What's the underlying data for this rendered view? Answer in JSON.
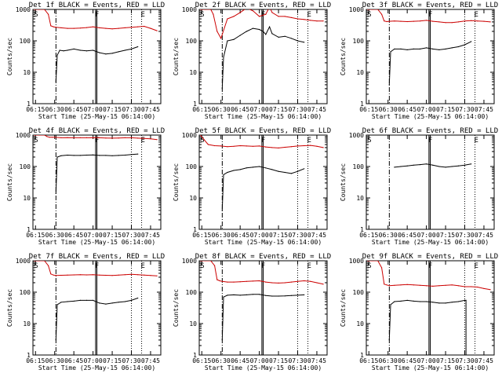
{
  "figure": {
    "title": "",
    "series_colors": {
      "events": "#000000",
      "lld": "#cc0000"
    }
  },
  "chart_data": [
    {
      "type": "line",
      "title": "Det 1f BLACK = Events, RED = LLD",
      "xlabel": "Start Time (25-May-15 06:14:00)",
      "ylabel": "Counts/sec",
      "xticks": [
        "06:15",
        "06:30",
        "06:45",
        "07:00",
        "07:15",
        "07:30",
        "07:45"
      ],
      "yticks": [
        "1",
        "10",
        "100",
        "1000"
      ],
      "ylim": [
        1,
        1000
      ],
      "yscale": "log",
      "markers": [
        "S",
        "F",
        "E"
      ],
      "series": [
        {
          "name": "LLD",
          "color": "#cc0000",
          "x": [
            "06:14",
            "06:18",
            "06:22",
            "06:25",
            "06:27",
            "06:29",
            "06:31",
            "06:35",
            "06:40",
            "06:45",
            "06:50",
            "06:55",
            "07:00",
            "07:05",
            "07:10",
            "07:15",
            "07:20",
            "07:25",
            "07:30",
            "07:35",
            "07:40",
            "07:45",
            "07:50"
          ],
          "y": [
            1000,
            1000,
            1000,
            700,
            300,
            280,
            270,
            260,
            250,
            250,
            255,
            265,
            280,
            260,
            250,
            240,
            250,
            260,
            270,
            280,
            290,
            250,
            210
          ]
        },
        {
          "name": "Events",
          "color": "#000000",
          "x": [
            "06:31",
            "06:32",
            "06:34",
            "06:37",
            "06:40",
            "06:45",
            "06:50",
            "06:55",
            "07:00",
            "07:05",
            "07:10",
            "07:15",
            "07:20",
            "07:25",
            "07:30",
            "07:35"
          ],
          "y": [
            5,
            35,
            50,
            48,
            50,
            55,
            50,
            48,
            50,
            42,
            38,
            40,
            45,
            50,
            55,
            65
          ]
        }
      ]
    },
    {
      "type": "line",
      "title": "Det 2f BLACK = Events, RED = LLD",
      "xlabel": "Start Time (25-May-15 06:14:00)",
      "ylabel": "Counts/sec",
      "xticks": [
        "06:15",
        "06:30",
        "06:45",
        "07:00",
        "07:15",
        "07:30",
        "07:45"
      ],
      "yticks": [
        "1",
        "10",
        "100",
        "1000"
      ],
      "ylim": [
        1,
        1000
      ],
      "yscale": "log",
      "markers": [
        "S",
        "F",
        "E"
      ],
      "series": [
        {
          "name": "LLD",
          "color": "#cc0000",
          "x": [
            "06:14",
            "06:18",
            "06:22",
            "06:24",
            "06:27",
            "06:30",
            "06:35",
            "06:40",
            "06:45",
            "06:50",
            "06:55",
            "07:00",
            "07:05",
            "07:08",
            "07:10",
            "07:15",
            "07:20",
            "07:25",
            "07:30",
            "07:35",
            "07:40",
            "07:45",
            "07:50"
          ],
          "y": [
            1000,
            1000,
            1000,
            700,
            200,
            120,
            500,
            600,
            800,
            1100,
            900,
            600,
            700,
            1200,
            800,
            600,
            600,
            550,
            500,
            480,
            450,
            430,
            430
          ]
        },
        {
          "name": "Events",
          "color": "#000000",
          "x": [
            "06:31",
            "06:32",
            "06:35",
            "06:40",
            "06:45",
            "06:50",
            "06:55",
            "07:00",
            "07:03",
            "07:05",
            "07:08",
            "07:10",
            "07:15",
            "07:20",
            "07:25",
            "07:30",
            "07:35"
          ],
          "y": [
            3,
            30,
            100,
            110,
            150,
            200,
            250,
            230,
            200,
            160,
            280,
            170,
            130,
            140,
            120,
            100,
            90
          ]
        }
      ]
    },
    {
      "type": "line",
      "title": "Det 3f BLACK = Events, RED = LLD",
      "xlabel": "Start Time (25-May-15 06:14:00)",
      "ylabel": "Counts/sec",
      "xticks": [
        "06:15",
        "06:30",
        "06:45",
        "07:00",
        "07:15",
        "07:30",
        "07:45"
      ],
      "yticks": [
        "1",
        "10",
        "100",
        "1000"
      ],
      "ylim": [
        1,
        1000
      ],
      "yscale": "log",
      "markers": [
        "S",
        "F",
        "E"
      ],
      "series": [
        {
          "name": "LLD",
          "color": "#cc0000",
          "x": [
            "06:14",
            "06:18",
            "06:22",
            "06:25",
            "06:27",
            "06:29",
            "06:31",
            "06:35",
            "06:40",
            "06:45",
            "06:50",
            "06:55",
            "07:00",
            "07:05",
            "07:10",
            "07:15",
            "07:20",
            "07:25",
            "07:30",
            "07:35",
            "07:40",
            "07:45",
            "07:50"
          ],
          "y": [
            1000,
            1000,
            1000,
            700,
            430,
            410,
            420,
            430,
            420,
            410,
            420,
            430,
            450,
            420,
            400,
            380,
            380,
            400,
            430,
            440,
            430,
            420,
            400
          ]
        },
        {
          "name": "Events",
          "color": "#000000",
          "x": [
            "06:31",
            "06:32",
            "06:35",
            "06:40",
            "06:45",
            "06:50",
            "06:55",
            "07:00",
            "07:05",
            "07:10",
            "07:15",
            "07:20",
            "07:25",
            "07:30",
            "07:35"
          ],
          "y": [
            4,
            45,
            55,
            55,
            52,
            55,
            55,
            60,
            55,
            52,
            55,
            60,
            65,
            75,
            95
          ]
        }
      ]
    },
    {
      "type": "line",
      "title": "Det 4f BLACK = Events, RED = LLD",
      "xlabel": "Start Time (25-May-15 06:14:00)",
      "ylabel": "Counts/sec",
      "xticks": [
        "06:15",
        "06:30",
        "06:45",
        "07:00",
        "07:15",
        "07:30",
        "07:45"
      ],
      "yticks": [
        "1",
        "10",
        "100",
        "1000"
      ],
      "ylim": [
        1,
        1000
      ],
      "yscale": "log",
      "markers": [
        "S",
        "F",
        "E"
      ],
      "series": [
        {
          "name": "LLD",
          "color": "#cc0000",
          "x": [
            "06:14",
            "06:18",
            "06:22",
            "06:24",
            "06:26",
            "06:28",
            "06:30",
            "06:35",
            "06:40",
            "06:45",
            "06:50",
            "06:55",
            "07:00",
            "07:05",
            "07:10",
            "07:15",
            "07:20",
            "07:25",
            "07:30",
            "07:35",
            "07:40",
            "07:45",
            "07:50"
          ],
          "y": [
            1000,
            1000,
            1000,
            900,
            850,
            850,
            850,
            820,
            830,
            820,
            820,
            820,
            830,
            820,
            810,
            800,
            810,
            820,
            820,
            800,
            780,
            760,
            720
          ]
        },
        {
          "name": "Events",
          "color": "#000000",
          "x": [
            "06:31",
            "06:32",
            "06:35",
            "06:40",
            "06:45",
            "06:50",
            "06:55",
            "07:00",
            "07:05",
            "07:10",
            "07:15",
            "07:20",
            "07:25",
            "07:30",
            "07:35"
          ],
          "y": [
            14,
            200,
            220,
            230,
            225,
            225,
            230,
            235,
            225,
            225,
            220,
            225,
            230,
            240,
            250
          ]
        }
      ]
    },
    {
      "type": "line",
      "title": "Det 5f BLACK = Events, RED = LLD",
      "xlabel": "Start Time (25-May-15 06:14:00)",
      "ylabel": "Counts/sec",
      "xticks": [
        "06:15",
        "06:30",
        "06:45",
        "07:00",
        "07:15",
        "07:30",
        "07:45"
      ],
      "yticks": [
        "1",
        "10",
        "100",
        "1000"
      ],
      "ylim": [
        1,
        1000
      ],
      "yscale": "log",
      "markers": [
        "S",
        "F",
        "E"
      ],
      "series": [
        {
          "name": "LLD",
          "color": "#cc0000",
          "x": [
            "06:14",
            "06:17",
            "06:20",
            "06:25",
            "06:30",
            "06:35",
            "06:40",
            "06:45",
            "06:50",
            "06:55",
            "07:00",
            "07:05",
            "07:10",
            "07:15",
            "07:20",
            "07:25",
            "07:30",
            "07:35",
            "07:40",
            "07:45",
            "07:50"
          ],
          "y": [
            1000,
            700,
            500,
            460,
            450,
            430,
            440,
            460,
            450,
            440,
            450,
            420,
            400,
            390,
            410,
            430,
            450,
            460,
            470,
            440,
            400
          ]
        },
        {
          "name": "Events",
          "color": "#000000",
          "x": [
            "06:31",
            "06:32",
            "06:35",
            "06:40",
            "06:45",
            "06:50",
            "06:55",
            "07:00",
            "07:05",
            "07:10",
            "07:15",
            "07:20",
            "07:25",
            "07:30",
            "07:35"
          ],
          "y": [
            4,
            55,
            65,
            75,
            80,
            90,
            95,
            100,
            90,
            80,
            70,
            65,
            60,
            70,
            85
          ]
        }
      ]
    },
    {
      "type": "line",
      "title": "Det 6f BLACK = Events, RED = LLD",
      "xlabel": "Start Time (25-May-15 06:14:00)",
      "ylabel": "Counts/sec",
      "xticks": [
        "06:15",
        "06:30",
        "06:45",
        "07:00",
        "07:15",
        "07:30",
        "07:45"
      ],
      "yticks": [
        "1",
        "10",
        "100",
        "1000"
      ],
      "ylim": [
        1,
        1000
      ],
      "yscale": "log",
      "markers": [
        "S",
        "F",
        "E"
      ],
      "series": [
        {
          "name": "Events",
          "color": "#000000",
          "x": [
            "06:35",
            "06:40",
            "06:45",
            "06:50",
            "06:55",
            "07:00",
            "07:05",
            "07:10",
            "07:15",
            "07:20",
            "07:25",
            "07:30",
            "07:35"
          ],
          "y": [
            95,
            100,
            105,
            110,
            115,
            120,
            110,
            100,
            95,
            100,
            105,
            110,
            120
          ]
        }
      ]
    },
    {
      "type": "line",
      "title": "Det 7f BLACK = Events, RED = LLD",
      "xlabel": "Start Time (25-May-15 06:14:00)",
      "ylabel": "Counts/sec",
      "xticks": [
        "06:15",
        "06:30",
        "06:45",
        "07:00",
        "07:15",
        "07:30",
        "07:45"
      ],
      "yticks": [
        "1",
        "10",
        "100",
        "1000"
      ],
      "ylim": [
        1,
        1000
      ],
      "yscale": "log",
      "markers": [
        "S",
        "F",
        "E"
      ],
      "series": [
        {
          "name": "LLD",
          "color": "#cc0000",
          "x": [
            "06:14",
            "06:18",
            "06:22",
            "06:25",
            "06:27",
            "06:29",
            "06:31",
            "06:35",
            "06:40",
            "06:45",
            "06:50",
            "06:55",
            "07:00",
            "07:05",
            "07:10",
            "07:15",
            "07:20",
            "07:25",
            "07:30",
            "07:35",
            "07:40",
            "07:45",
            "07:50"
          ],
          "y": [
            1000,
            1000,
            1000,
            700,
            380,
            350,
            340,
            345,
            350,
            355,
            360,
            355,
            360,
            350,
            345,
            340,
            350,
            360,
            370,
            360,
            350,
            340,
            330
          ]
        },
        {
          "name": "Events",
          "color": "#000000",
          "x": [
            "06:31",
            "06:32",
            "06:35",
            "06:40",
            "06:45",
            "06:50",
            "06:55",
            "07:00",
            "07:05",
            "07:10",
            "07:15",
            "07:20",
            "07:25",
            "07:30",
            "07:35"
          ],
          "y": [
            3,
            40,
            48,
            50,
            52,
            55,
            55,
            55,
            45,
            42,
            45,
            48,
            50,
            55,
            65
          ]
        }
      ]
    },
    {
      "type": "line",
      "title": "Det 8f BLACK = Events, RED = LLD",
      "xlabel": "Start Time (25-May-15 06:14:00)",
      "ylabel": "Counts/sec",
      "xticks": [
        "06:15",
        "06:30",
        "06:45",
        "07:00",
        "07:15",
        "07:30",
        "07:45"
      ],
      "yticks": [
        "1",
        "10",
        "100",
        "1000"
      ],
      "ylim": [
        1,
        1000
      ],
      "yscale": "log",
      "markers": [
        "S",
        "F",
        "E"
      ],
      "series": [
        {
          "name": "LLD",
          "color": "#cc0000",
          "x": [
            "06:14",
            "06:18",
            "06:22",
            "06:25",
            "06:27",
            "06:29",
            "06:31",
            "06:35",
            "06:40",
            "06:45",
            "06:50",
            "06:55",
            "07:00",
            "07:05",
            "07:10",
            "07:15",
            "07:20",
            "07:25",
            "07:30",
            "07:35",
            "07:40",
            "07:45",
            "07:50"
          ],
          "y": [
            1000,
            1000,
            1000,
            700,
            250,
            230,
            220,
            210,
            210,
            215,
            220,
            225,
            230,
            210,
            200,
            195,
            200,
            210,
            220,
            230,
            220,
            200,
            180
          ]
        },
        {
          "name": "Events",
          "color": "#000000",
          "x": [
            "06:31",
            "06:32",
            "06:35",
            "06:40",
            "06:45",
            "06:50",
            "06:55",
            "07:00",
            "07:05",
            "07:10",
            "07:15",
            "07:20",
            "07:25",
            "07:30",
            "07:35"
          ],
          "y": [
            3,
            70,
            80,
            82,
            80,
            82,
            85,
            85,
            78,
            75,
            75,
            76,
            78,
            80,
            82
          ]
        }
      ]
    },
    {
      "type": "line",
      "title": "Det 9f BLACK = Events, RED = LLD",
      "xlabel": "Start Time (25-May-15 06:14:00)",
      "ylabel": "Counts/sec",
      "xticks": [
        "06:15",
        "06:30",
        "06:45",
        "07:00",
        "07:15",
        "07:30",
        "07:45"
      ],
      "yticks": [
        "1",
        "10",
        "100",
        "1000"
      ],
      "ylim": [
        1,
        1000
      ],
      "yscale": "log",
      "markers": [
        "S",
        "F",
        "E"
      ],
      "series": [
        {
          "name": "LLD",
          "color": "#cc0000",
          "x": [
            "06:14",
            "06:18",
            "06:22",
            "06:25",
            "06:27",
            "06:29",
            "06:31",
            "06:35",
            "06:40",
            "06:45",
            "06:50",
            "06:55",
            "07:00",
            "07:05",
            "07:10",
            "07:15",
            "07:20",
            "07:25",
            "07:30",
            "07:35",
            "07:40",
            "07:45",
            "07:50"
          ],
          "y": [
            1000,
            1000,
            1000,
            600,
            180,
            170,
            160,
            165,
            170,
            175,
            170,
            165,
            160,
            155,
            160,
            165,
            170,
            160,
            150,
            150,
            145,
            130,
            120
          ]
        },
        {
          "name": "Events",
          "color": "#000000",
          "x": [
            "06:31",
            "06:32",
            "06:35",
            "06:40",
            "06:45",
            "06:50",
            "06:55",
            "07:00",
            "07:05",
            "07:10",
            "07:15",
            "07:20",
            "07:25",
            "07:30",
            "07:31",
            "07:31"
          ],
          "y": [
            3,
            40,
            50,
            52,
            55,
            52,
            50,
            50,
            48,
            45,
            45,
            48,
            50,
            55,
            55,
            1
          ]
        }
      ]
    }
  ]
}
